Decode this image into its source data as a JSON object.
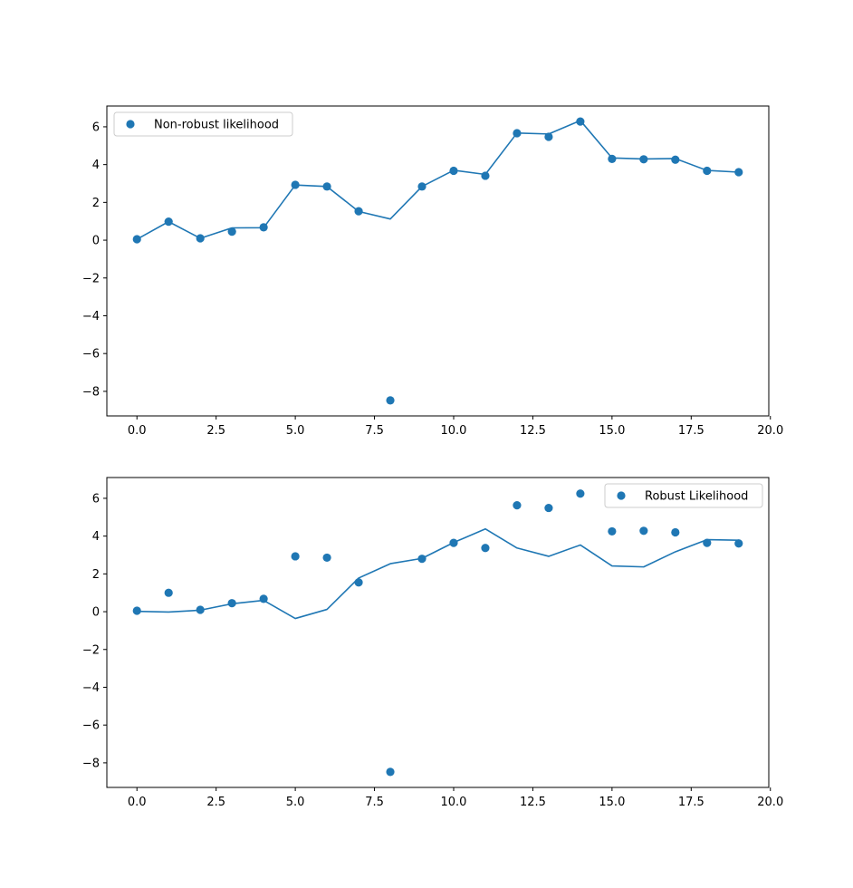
{
  "chart_data": [
    {
      "type": "scatter",
      "title": "",
      "xlabel": "",
      "ylabel": "",
      "xlim": [
        -0.95,
        19.95
      ],
      "ylim": [
        -9.3,
        7.1
      ],
      "xticks": [
        0.0,
        2.5,
        5.0,
        7.5,
        10.0,
        12.5,
        15.0,
        17.5,
        20.0
      ],
      "xtick_labels": [
        "0.0",
        "2.5",
        "5.0",
        "7.5",
        "10.0",
        "12.5",
        "15.0",
        "17.5",
        "20.0"
      ],
      "yticks": [
        6,
        4,
        2,
        0,
        -2,
        -4,
        -6,
        -8
      ],
      "ytick_labels": [
        "6",
        "4",
        "2",
        "0",
        "−2",
        "−4",
        "−6",
        "−8"
      ],
      "grid": false,
      "legend_position": "upper-left",
      "series": [
        {
          "name": "Non-robust likelihood",
          "kind": "scatter",
          "x": [
            0,
            1,
            2,
            3,
            4,
            5,
            6,
            7,
            8,
            9,
            10,
            11,
            12,
            13,
            14,
            15,
            16,
            17,
            18,
            19
          ],
          "y": [
            0.05,
            0.98,
            0.1,
            0.45,
            0.68,
            2.93,
            2.84,
            1.53,
            -8.48,
            2.84,
            3.67,
            3.41,
            5.66,
            5.47,
            6.28,
            4.3,
            4.28,
            4.26,
            3.67,
            3.6
          ],
          "color": "#1f77b4"
        },
        {
          "kind": "line",
          "x": [
            0,
            1,
            2,
            3,
            4,
            5,
            6,
            7,
            8,
            9,
            10,
            11,
            12,
            13,
            14,
            15,
            16,
            17,
            18,
            19
          ],
          "y": [
            0.05,
            0.98,
            0.1,
            0.65,
            0.66,
            2.92,
            2.84,
            1.52,
            1.12,
            2.84,
            3.7,
            3.48,
            5.67,
            5.62,
            6.33,
            4.35,
            4.3,
            4.32,
            3.69,
            3.6
          ],
          "color": "#1f77b4"
        }
      ]
    },
    {
      "type": "scatter",
      "title": "",
      "xlabel": "",
      "ylabel": "",
      "xlim": [
        -0.95,
        19.95
      ],
      "ylim": [
        -9.3,
        7.1
      ],
      "xticks": [
        0.0,
        2.5,
        5.0,
        7.5,
        10.0,
        12.5,
        15.0,
        17.5,
        20.0
      ],
      "xtick_labels": [
        "0.0",
        "2.5",
        "5.0",
        "7.5",
        "10.0",
        "12.5",
        "15.0",
        "17.5",
        "20.0"
      ],
      "yticks": [
        6,
        4,
        2,
        0,
        -2,
        -4,
        -6,
        -8
      ],
      "ytick_labels": [
        "6",
        "4",
        "2",
        "0",
        "−2",
        "−4",
        "−6",
        "−8"
      ],
      "grid": false,
      "legend_position": "upper-right",
      "series": [
        {
          "name": "Robust Likelihood",
          "kind": "scatter",
          "x": [
            0,
            1,
            2,
            3,
            4,
            5,
            6,
            7,
            8,
            9,
            10,
            11,
            12,
            13,
            14,
            15,
            16,
            17,
            18,
            19
          ],
          "y": [
            0.05,
            1.0,
            0.1,
            0.45,
            0.68,
            2.93,
            2.86,
            1.55,
            -8.48,
            2.8,
            3.64,
            3.37,
            5.63,
            5.49,
            6.25,
            4.25,
            4.28,
            4.2,
            3.64,
            3.61
          ],
          "color": "#1f77b4"
        },
        {
          "kind": "line",
          "x": [
            0,
            1,
            2,
            3,
            4,
            5,
            6,
            7,
            8,
            9,
            10,
            11,
            12,
            13,
            14,
            15,
            16,
            17,
            18,
            19
          ],
          "y": [
            0.02,
            -0.02,
            0.08,
            0.42,
            0.6,
            -0.36,
            0.12,
            1.78,
            2.54,
            2.82,
            3.66,
            4.38,
            3.37,
            2.93,
            3.53,
            2.42,
            2.37,
            3.17,
            3.81,
            3.78
          ],
          "color": "#1f77b4"
        }
      ]
    }
  ]
}
